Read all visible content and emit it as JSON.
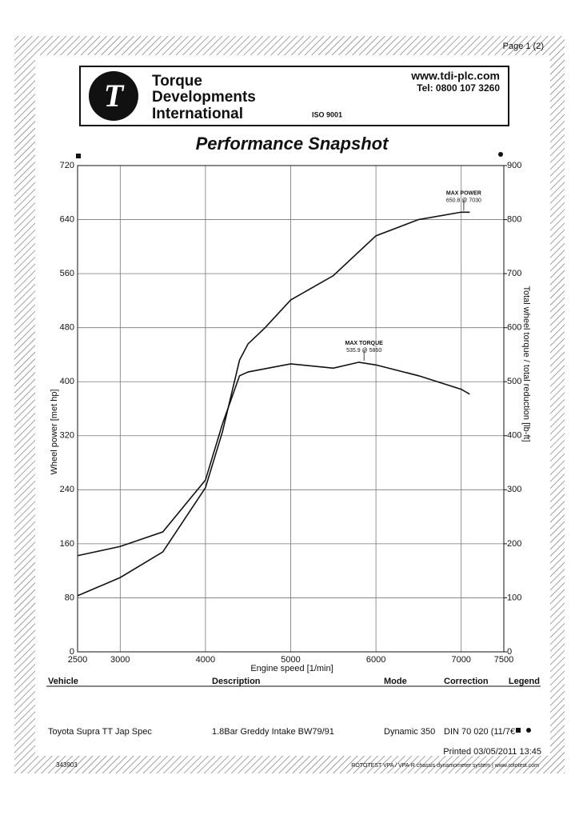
{
  "page": "Page 1 (2)",
  "company": {
    "name": "Torque Developments International",
    "web": "www.tdi-plc.com",
    "tel": "Tel: 0800 107 3260",
    "iso": "ISO 9001"
  },
  "chart_data": {
    "type": "line",
    "title": "Performance Snapshot",
    "x_label": "Engine speed [1/min]",
    "y_label": "Wheel power [met hp]",
    "y2_label": "Total wheel torque / total reduction [lb-ft]",
    "xlim": [
      2500,
      7500
    ],
    "xticks": [
      2500,
      3000,
      4000,
      5000,
      6000,
      7000,
      7500
    ],
    "ylim": [
      0,
      720
    ],
    "yticks": [
      0,
      80,
      160,
      240,
      320,
      400,
      480,
      560,
      640,
      720
    ],
    "y2lim": [
      0,
      900
    ],
    "y2ticks": [
      0,
      100,
      200,
      300,
      400,
      500,
      600,
      700,
      800,
      900
    ],
    "grid": true,
    "series": [
      {
        "name": "Wheel power",
        "color": "#111111",
        "marker": "square",
        "x": [
          2500,
          3000,
          3500,
          4000,
          4200,
          4400,
          4500,
          4700,
          5000,
          5500,
          6000,
          6500,
          7000,
          7100
        ],
        "values": [
          83,
          110,
          148,
          243,
          326,
          432,
          456,
          480,
          521,
          557,
          616,
          640,
          651,
          651
        ]
      },
      {
        "name": "Torque",
        "color": "#111111",
        "marker": "circle",
        "axis": "y2",
        "x": [
          2500,
          3000,
          3500,
          4000,
          4200,
          4400,
          4500,
          5000,
          5500,
          5800,
          6000,
          6500,
          7000,
          7100
        ],
        "values": [
          178,
          195,
          222,
          318,
          422,
          511,
          518,
          533,
          525,
          536,
          531,
          511,
          486,
          477
        ]
      }
    ],
    "annotations": [
      {
        "text": [
          "MAX POWER",
          "650.8 @ 7030"
        ],
        "x": 7030,
        "y": 650.8
      },
      {
        "text": [
          "MAX TORQUE",
          "535.9 @ 5860"
        ],
        "x": 5860,
        "y": 535.9,
        "axis": "y2"
      }
    ]
  },
  "table": {
    "headers": [
      "Vehicle",
      "Description",
      "Mode",
      "Correction",
      "Legend"
    ],
    "row": [
      "Toyota Supra TT Jap Spec",
      "1.8Bar Greddy Intake BW79/91",
      "Dynamic 350",
      "DIN 70 020 (11/7€"
    ]
  },
  "footer": {
    "printed": "Printed 03/05/2011 13:45",
    "id": "343903",
    "system": "ROTOTEST VPA / VPA-R chassis dynamometer system | www.rototest.com"
  }
}
